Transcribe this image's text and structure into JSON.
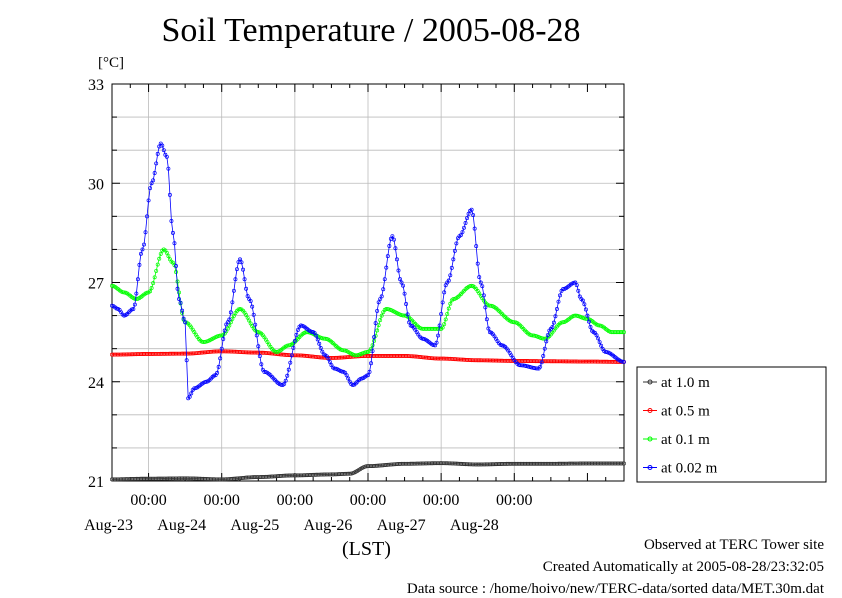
{
  "chart_data": {
    "type": "line",
    "title": "Soil Temperature / 2005-08-28",
    "ylabel": "[°C]",
    "xlabel": "(LST)",
    "ylim": [
      21,
      33
    ],
    "yticks": [
      "21",
      "24",
      "27",
      "30",
      "33"
    ],
    "x_range_days": [
      "Aug-23",
      "Aug-28"
    ],
    "xticks": [
      {
        "time": "00:00",
        "date": "Aug-23"
      },
      {
        "time": "00:00",
        "date": "Aug-24"
      },
      {
        "time": "00:00",
        "date": "Aug-25"
      },
      {
        "time": "00:00",
        "date": "Aug-26"
      },
      {
        "time": "00:00",
        "date": "Aug-27"
      },
      {
        "time": "00:00",
        "date": "Aug-28"
      }
    ],
    "grid": true,
    "legend_position": "right",
    "x_unit": "hours since Aug-22 12:00",
    "series": [
      {
        "name": "at 1.0 m",
        "color": "#333333",
        "x": [
          0,
          12,
          24,
          36,
          48,
          60,
          72,
          78,
          84,
          96,
          108,
          120,
          132,
          144,
          156,
          168
        ],
        "y": [
          21.05,
          21.07,
          21.08,
          21.05,
          21.12,
          21.17,
          21.2,
          21.22,
          21.45,
          21.52,
          21.54,
          21.5,
          21.52,
          21.52,
          21.53,
          21.53
        ]
      },
      {
        "name": "at 0.5 m",
        "color": "#ff0000",
        "x": [
          0,
          12,
          24,
          36,
          48,
          60,
          72,
          84,
          96,
          108,
          120,
          132,
          144,
          156,
          168
        ],
        "y": [
          24.82,
          24.84,
          24.85,
          24.92,
          24.88,
          24.8,
          24.72,
          24.78,
          24.78,
          24.7,
          24.65,
          24.63,
          24.62,
          24.61,
          24.6
        ]
      },
      {
        "name": "at 0.1 m",
        "color": "#00ff00",
        "x": [
          0,
          4,
          8,
          12,
          17,
          20,
          24,
          30,
          36,
          42,
          48,
          54,
          58,
          64,
          70,
          76,
          80,
          84,
          90,
          96,
          102,
          108,
          112,
          118,
          124,
          132,
          138,
          142,
          148,
          152,
          156,
          160,
          164,
          168
        ],
        "y": [
          26.9,
          26.7,
          26.5,
          26.7,
          28.0,
          27.6,
          25.8,
          25.2,
          25.4,
          26.2,
          25.5,
          24.9,
          25.1,
          25.5,
          25.3,
          24.95,
          24.8,
          24.9,
          26.2,
          26.0,
          25.6,
          25.6,
          26.5,
          26.9,
          26.3,
          25.8,
          25.4,
          25.3,
          25.8,
          26.0,
          25.9,
          25.7,
          25.5,
          25.5
        ]
      },
      {
        "name": "at 0.02 m",
        "color": "#0000ff",
        "x": [
          0,
          2,
          4,
          7,
          10,
          13,
          16,
          18,
          20,
          22,
          24,
          25,
          27,
          31,
          34,
          38,
          42,
          45,
          50,
          56,
          62,
          66,
          70,
          73,
          76,
          79,
          82,
          84,
          88,
          92,
          95,
          98,
          102,
          106,
          110,
          114,
          118,
          121,
          124,
          128,
          134,
          140,
          144,
          148,
          152,
          154,
          158,
          162,
          168
        ],
        "y": [
          26.3,
          26.2,
          26.0,
          26.2,
          28.0,
          30.0,
          31.2,
          30.8,
          28.5,
          26.5,
          25.8,
          23.5,
          23.8,
          24.0,
          24.2,
          25.8,
          27.7,
          26.5,
          24.3,
          23.9,
          25.7,
          25.5,
          24.8,
          24.4,
          24.3,
          23.9,
          24.1,
          24.2,
          26.5,
          28.4,
          27.0,
          25.7,
          25.3,
          25.1,
          27.0,
          28.4,
          29.2,
          27.0,
          25.5,
          25.1,
          24.5,
          24.4,
          25.6,
          26.8,
          27.0,
          26.5,
          25.5,
          24.9,
          24.6
        ]
      }
    ]
  },
  "footer": {
    "line1": "Observed at TERC Tower site",
    "line2": "Created Automatically at 2005-08-28/23:32:05",
    "line3": "Data source : /home/hoivo/new/TERC-data/sorted  data/MET.30m.dat"
  }
}
